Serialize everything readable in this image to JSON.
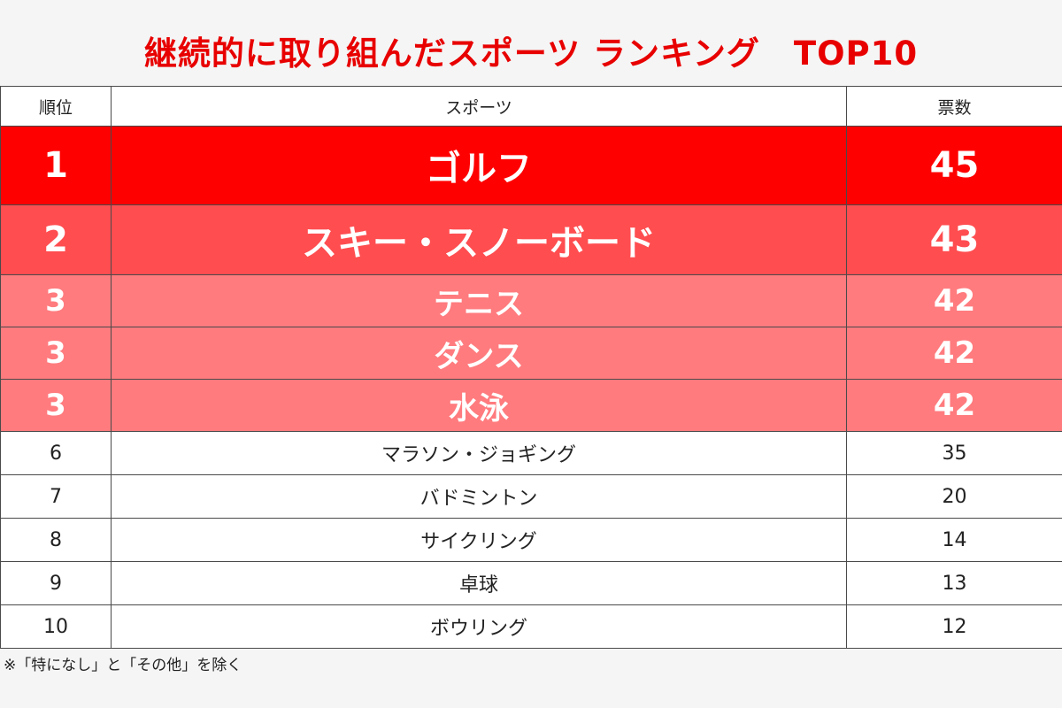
{
  "chart_data": {
    "type": "table",
    "title": "継続的に取り組んだスポーツ ランキング　TOP10",
    "columns": [
      "順位",
      "スポーツ",
      "票数"
    ],
    "rows": [
      {
        "rank": "1",
        "sport": "ゴルフ",
        "votes": 45
      },
      {
        "rank": "2",
        "sport": "スキー・スノーボード",
        "votes": 43
      },
      {
        "rank": "3",
        "sport": "テニス",
        "votes": 42
      },
      {
        "rank": "3",
        "sport": "ダンス",
        "votes": 42
      },
      {
        "rank": "3",
        "sport": "水泳",
        "votes": 42
      },
      {
        "rank": "6",
        "sport": "マラソン・ジョギング",
        "votes": 35
      },
      {
        "rank": "7",
        "sport": "バドミントン",
        "votes": 20
      },
      {
        "rank": "8",
        "sport": "サイクリング",
        "votes": 14
      },
      {
        "rank": "9",
        "sport": "卓球",
        "votes": 13
      },
      {
        "rank": "10",
        "sport": "ボウリング",
        "votes": 12
      }
    ],
    "note": "※「特になし」と「その他」を除く",
    "colors": {
      "title": "#e80000",
      "rank1": "#ff0000",
      "rank2": "#ff4d50",
      "rank3": "#ff7b7e",
      "other": "#ffffff"
    }
  }
}
